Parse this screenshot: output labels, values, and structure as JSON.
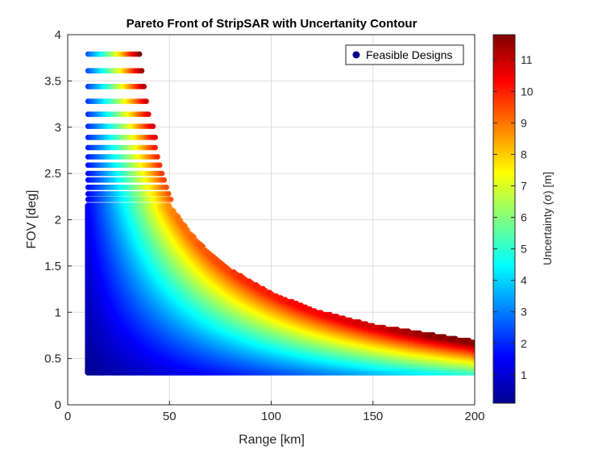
{
  "chart_data": {
    "type": "scatter",
    "title": "Pareto Front of StripSAR with Uncertanity Contour",
    "xlabel": "Range [km]",
    "ylabel": "FOV [deg]",
    "xlim": [
      0,
      200
    ],
    "ylim": [
      0,
      4
    ],
    "xticks": [
      0,
      50,
      100,
      150,
      200
    ],
    "yticks": [
      0,
      0.5,
      1,
      1.5,
      2,
      2.5,
      3,
      3.5,
      4
    ],
    "grid": true,
    "legend": {
      "location": "top-right",
      "entries": [
        "Feasible Designs"
      ]
    },
    "marker_color": "#00008b",
    "colormap": "jet",
    "colorbar": {
      "label": "Uncertainty (σ) [m]",
      "ticks": [
        1,
        2,
        3,
        4,
        5,
        6,
        7,
        8,
        9,
        10,
        11
      ],
      "range": [
        0.1,
        11.8
      ]
    },
    "series": [
      {
        "name": "Feasible Designs",
        "range_min_km": 10,
        "fov_min_deg": 0.35,
        "dense_region": {
          "range_km": [
            10,
            200
          ],
          "fov_deg": [
            0.35,
            2.15
          ]
        },
        "boundary": {
          "description": "upper feasible boundary FOV vs Range",
          "range_km": [
            40,
            45,
            50,
            60,
            70,
            80,
            100,
            120,
            150,
            200
          ],
          "fov_deg": [
            2.6,
            2.35,
            2.15,
            1.85,
            1.62,
            1.45,
            1.2,
            1.02,
            0.85,
            0.68
          ]
        },
        "sparse_rows": [
          {
            "fov": 2.22,
            "range_max": 51
          },
          {
            "fov": 2.28,
            "range_max": 50
          },
          {
            "fov": 2.35,
            "range_max": 49
          },
          {
            "fov": 2.43,
            "range_max": 48
          },
          {
            "fov": 2.5,
            "range_max": 47
          },
          {
            "fov": 2.59,
            "range_max": 46
          },
          {
            "fov": 2.68,
            "range_max": 45
          },
          {
            "fov": 2.78,
            "range_max": 44
          },
          {
            "fov": 2.89,
            "range_max": 43
          },
          {
            "fov": 3.01,
            "range_max": 42
          },
          {
            "fov": 3.14,
            "range_max": 40
          },
          {
            "fov": 3.28,
            "range_max": 39
          },
          {
            "fov": 3.44,
            "range_max": 38
          },
          {
            "fov": 3.61,
            "range_max": 37
          },
          {
            "fov": 3.79,
            "range_max": 36
          }
        ]
      }
    ]
  }
}
